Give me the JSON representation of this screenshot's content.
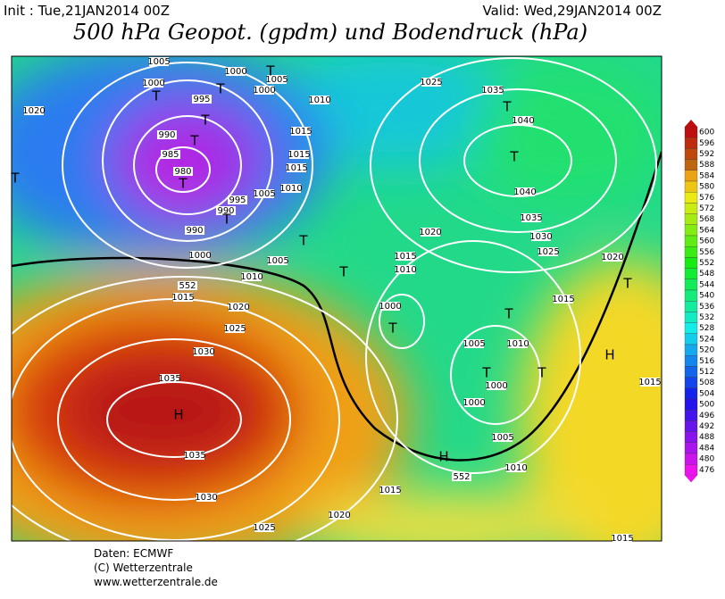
{
  "header": {
    "init": "Init : Tue,21JAN2014 00Z",
    "valid": "Valid: Wed,29JAN2014 00Z",
    "title": "500 hPa Geopot. (gpdm) und Bodendruck (hPa)"
  },
  "map": {
    "labels": [
      "1005",
      "1000",
      "995",
      "990",
      "985",
      "980",
      "995",
      "990",
      "990",
      "1000",
      "1005",
      "1010",
      "1015",
      "1020",
      "1025",
      "1030",
      "1035",
      "1035",
      "1030",
      "1025",
      "1020",
      "1015",
      "1020",
      "1000",
      "1005",
      "1000",
      "1010",
      "1015",
      "1015",
      "1015",
      "1010",
      "1005",
      "1025",
      "1035",
      "1040",
      "1040",
      "1035",
      "1030",
      "1025",
      "1020",
      "1015",
      "1010",
      "1000",
      "1015",
      "1020",
      "1005",
      "1010",
      "1000",
      "1000",
      "1005",
      "1010",
      "1015",
      "1015",
      "552",
      "552"
    ],
    "centers": [
      "T",
      "T",
      "T",
      "T",
      "T",
      "T",
      "T",
      "T",
      "T",
      "T",
      "T",
      "T",
      "T",
      "T",
      "T",
      "T",
      "T",
      "H",
      "H",
      "H"
    ]
  },
  "legend": {
    "levels": [
      600,
      596,
      592,
      588,
      584,
      580,
      576,
      572,
      568,
      564,
      560,
      556,
      552,
      548,
      544,
      540,
      536,
      532,
      528,
      524,
      520,
      516,
      512,
      508,
      504,
      500,
      496,
      492,
      488,
      484,
      480,
      476
    ]
  },
  "footer": {
    "lines": [
      "Daten: ECMWF",
      "(C) Wetterzentrale",
      "www.wetterzentrale.de"
    ]
  }
}
